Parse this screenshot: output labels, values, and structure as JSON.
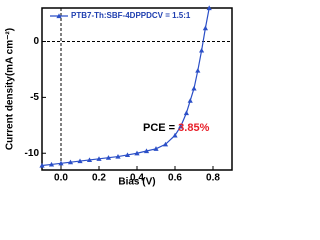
{
  "chart_data": {
    "type": "line",
    "x_label": "Bias (V)",
    "y_label": "Current density(mA cm⁻²)",
    "annotation_prefix": "PCE = ",
    "annotation_value": "3.85%",
    "annotation_color": "#e8202a",
    "x": [
      -0.1,
      -0.05,
      0,
      0.05,
      0.1,
      0.15,
      0.2,
      0.25,
      0.3,
      0.35,
      0.4,
      0.45,
      0.5,
      0.55,
      0.6,
      0.63,
      0.66,
      0.68,
      0.7,
      0.72,
      0.74,
      0.76,
      0.78
    ],
    "series": [
      {
        "name": "PTB7-Th:SBF-4DPPDCV = 1.5:1",
        "color": "#2b4fc7",
        "values": [
          -11.1,
          -11.0,
          -10.9,
          -10.8,
          -10.7,
          -10.6,
          -10.5,
          -10.4,
          -10.3,
          -10.15,
          -10.0,
          -9.8,
          -9.6,
          -9.2,
          -8.4,
          -7.6,
          -6.4,
          -5.3,
          -4.2,
          -2.6,
          -0.8,
          1.2,
          3.0
        ]
      }
    ],
    "xlim": [
      -0.1,
      0.9
    ],
    "ylim": [
      -11.5,
      3
    ],
    "xticks": [
      {
        "value": 0,
        "label": "0.0"
      },
      {
        "value": 0.2,
        "label": "0.2"
      },
      {
        "value": 0.4,
        "label": "0.4"
      },
      {
        "value": 0.6,
        "label": "0.6"
      },
      {
        "value": 0.8,
        "label": "0.8"
      }
    ],
    "yticks": [
      -10,
      -5,
      0
    ],
    "zero_lines": true
  }
}
